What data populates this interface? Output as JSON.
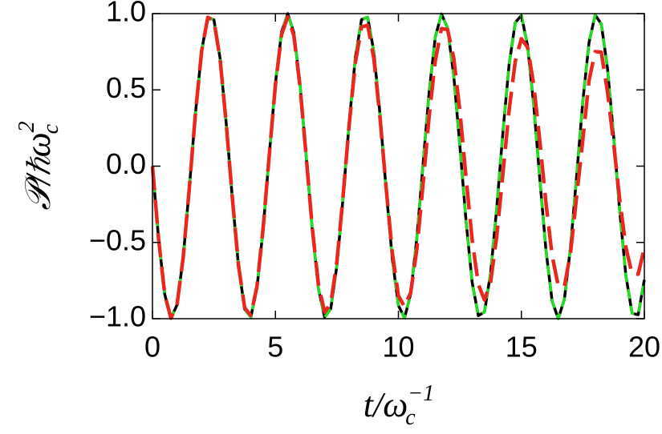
{
  "chart_data": {
    "type": "line",
    "xlabel": {
      "base": "t/ω",
      "sub": "c",
      "sup": "−1"
    },
    "ylabel": {
      "base": "𝒫/ℏω",
      "sub": "c",
      "sup": "2"
    },
    "xlim": [
      0,
      20
    ],
    "ylim": [
      -1.0,
      1.0
    ],
    "xticks": [
      0,
      5,
      10,
      15,
      20
    ],
    "yticks": [
      {
        "value": -1.0,
        "label": "−1.0"
      },
      {
        "value": -0.5,
        "label": "−0.5"
      },
      {
        "value": 0.0,
        "label": "0.0"
      },
      {
        "value": 0.5,
        "label": "0.5"
      },
      {
        "value": 1.0,
        "label": "1.0"
      }
    ],
    "x": [
      0,
      0.25,
      0.5,
      0.75,
      1,
      1.25,
      1.5,
      1.75,
      2,
      2.25,
      2.5,
      2.75,
      3,
      3.25,
      3.5,
      3.75,
      4,
      4.25,
      4.5,
      4.75,
      5,
      5.25,
      5.5,
      5.75,
      6,
      6.25,
      6.5,
      6.75,
      7,
      7.25,
      7.5,
      7.75,
      8,
      8.25,
      8.5,
      8.75,
      9,
      9.25,
      9.5,
      9.75,
      10,
      10.25,
      10.5,
      10.75,
      11,
      11.25,
      11.5,
      11.75,
      12,
      12.25,
      12.5,
      12.75,
      13,
      13.25,
      13.5,
      13.75,
      14,
      14.25,
      14.5,
      14.75,
      15,
      15.25,
      15.5,
      15.75,
      16,
      16.25,
      16.5,
      16.75,
      17,
      17.25,
      17.5,
      17.75,
      18,
      18.25,
      18.5,
      18.75,
      19,
      19.25,
      19.5,
      19.75,
      20
    ],
    "series": [
      {
        "color": "#000000",
        "dashed": false,
        "values": [
          0,
          -0.479,
          -0.841,
          -0.997,
          -0.909,
          -0.598,
          -0.141,
          0.351,
          0.757,
          0.978,
          0.959,
          0.706,
          0.279,
          -0.215,
          -0.657,
          -0.938,
          -0.989,
          -0.798,
          -0.412,
          0.075,
          0.544,
          0.88,
          1.0,
          0.875,
          0.537,
          0.066,
          -0.42,
          -0.804,
          -0.991,
          -0.935,
          -0.65,
          -0.207,
          0.288,
          0.712,
          0.961,
          0.976,
          0.751,
          0.342,
          -0.15,
          -0.605,
          -0.913,
          -0.996,
          -0.837,
          -0.471,
          0.009,
          0.487,
          0.846,
          0.998,
          0.906,
          0.592,
          0.132,
          -0.359,
          -0.763,
          -0.98,
          -0.956,
          -0.699,
          -0.271,
          0.223,
          0.664,
          0.941,
          0.988,
          0.793,
          0.404,
          -0.084,
          -0.551,
          -0.884,
          -1.0,
          -0.871,
          -0.529,
          -0.057,
          0.428,
          0.809,
          0.992,
          0.931,
          0.644,
          0.199,
          -0.296,
          -0.718,
          -0.964,
          -0.974,
          -0.745
        ]
      },
      {
        "color": "#22dd22",
        "dashed": true,
        "values": [
          0,
          -0.479,
          -0.841,
          -0.997,
          -0.909,
          -0.598,
          -0.141,
          0.351,
          0.757,
          0.978,
          0.959,
          0.706,
          0.279,
          -0.215,
          -0.657,
          -0.938,
          -0.989,
          -0.798,
          -0.412,
          0.075,
          0.544,
          0.88,
          1.0,
          0.875,
          0.537,
          0.066,
          -0.42,
          -0.804,
          -0.991,
          -0.935,
          -0.65,
          -0.207,
          0.288,
          0.712,
          0.961,
          0.976,
          0.751,
          0.342,
          -0.15,
          -0.605,
          -0.913,
          -0.996,
          -0.837,
          -0.471,
          0.009,
          0.487,
          0.846,
          0.998,
          0.906,
          0.592,
          0.132,
          -0.359,
          -0.763,
          -0.98,
          -0.956,
          -0.699,
          -0.271,
          0.223,
          0.664,
          0.941,
          0.988,
          0.793,
          0.404,
          -0.084,
          -0.551,
          -0.884,
          -1.0,
          -0.871,
          -0.529,
          -0.057,
          0.428,
          0.809,
          0.992,
          0.931,
          0.644,
          0.199,
          -0.296,
          -0.718,
          -0.964,
          -0.974,
          -0.745
        ]
      },
      {
        "color": "#e8281e",
        "dashed": true,
        "values": [
          0,
          -0.479,
          -0.841,
          -0.997,
          -0.908,
          -0.597,
          -0.141,
          0.35,
          0.755,
          0.975,
          0.955,
          0.702,
          0.277,
          -0.213,
          -0.651,
          -0.929,
          -0.978,
          -0.788,
          -0.406,
          0.074,
          0.534,
          0.863,
          0.979,
          0.855,
          0.523,
          0.064,
          -0.408,
          -0.778,
          -0.957,
          -0.901,
          -0.624,
          -0.198,
          0.275,
          0.678,
          0.912,
          0.924,
          0.708,
          0.322,
          -0.14,
          -0.565,
          -0.849,
          -0.922,
          -0.828,
          -0.544,
          -0.122,
          0.327,
          0.691,
          0.902,
          0.895,
          0.71,
          0.362,
          -0.074,
          -0.486,
          -0.775,
          -0.877,
          -0.76,
          -0.456,
          -0.049,
          0.365,
          0.686,
          0.836,
          0.779,
          0.536,
          0.164,
          -0.243,
          -0.585,
          -0.786,
          -0.788,
          -0.566,
          -0.194,
          0.175,
          0.561,
          0.751,
          0.747,
          0.49,
          0.15,
          -0.221,
          -0.532,
          -0.707,
          -0.708,
          -0.536
        ]
      }
    ]
  }
}
